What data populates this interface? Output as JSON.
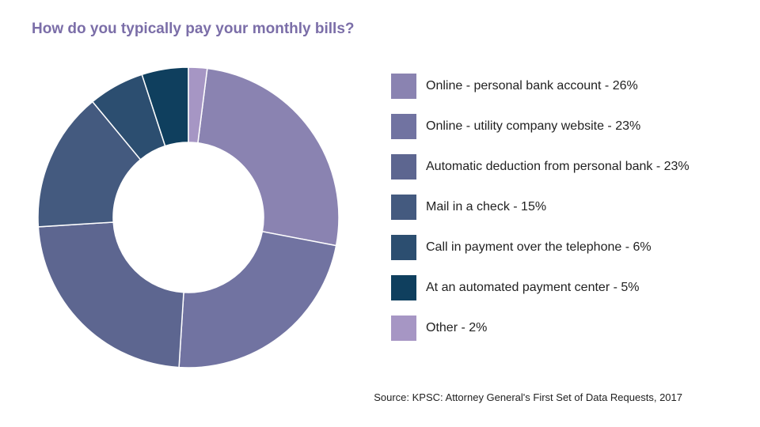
{
  "chart_data": {
    "type": "pie",
    "title": "How do you typically pay your monthly bills?",
    "source": "Source: KPSC: Attorney General's First Set of Data Requests, 2017",
    "categories": [
      "Online - personal bank account",
      "Online - utility company website",
      "Automatic deduction from personal bank",
      "Mail in a check",
      "Call in payment over the telephone",
      "At an automated payment center",
      "Other"
    ],
    "values": [
      26,
      23,
      23,
      15,
      6,
      5,
      2
    ],
    "unit": "%",
    "legend_labels": [
      "Online - personal bank account - 26%",
      "Online - utility company website - 23%",
      "Automatic deduction from personal bank - 23%",
      "Mail in a check - 15%",
      "Call in payment over the telephone - 6%",
      "At an automated payment center - 5%",
      "Other - 2%"
    ],
    "colors": [
      "#8a83b1",
      "#7173a1",
      "#5d6690",
      "#445a7f",
      "#2c4e70",
      "#0f3f5e",
      "#a696c4"
    ],
    "donut": true,
    "legend_position": "right"
  }
}
